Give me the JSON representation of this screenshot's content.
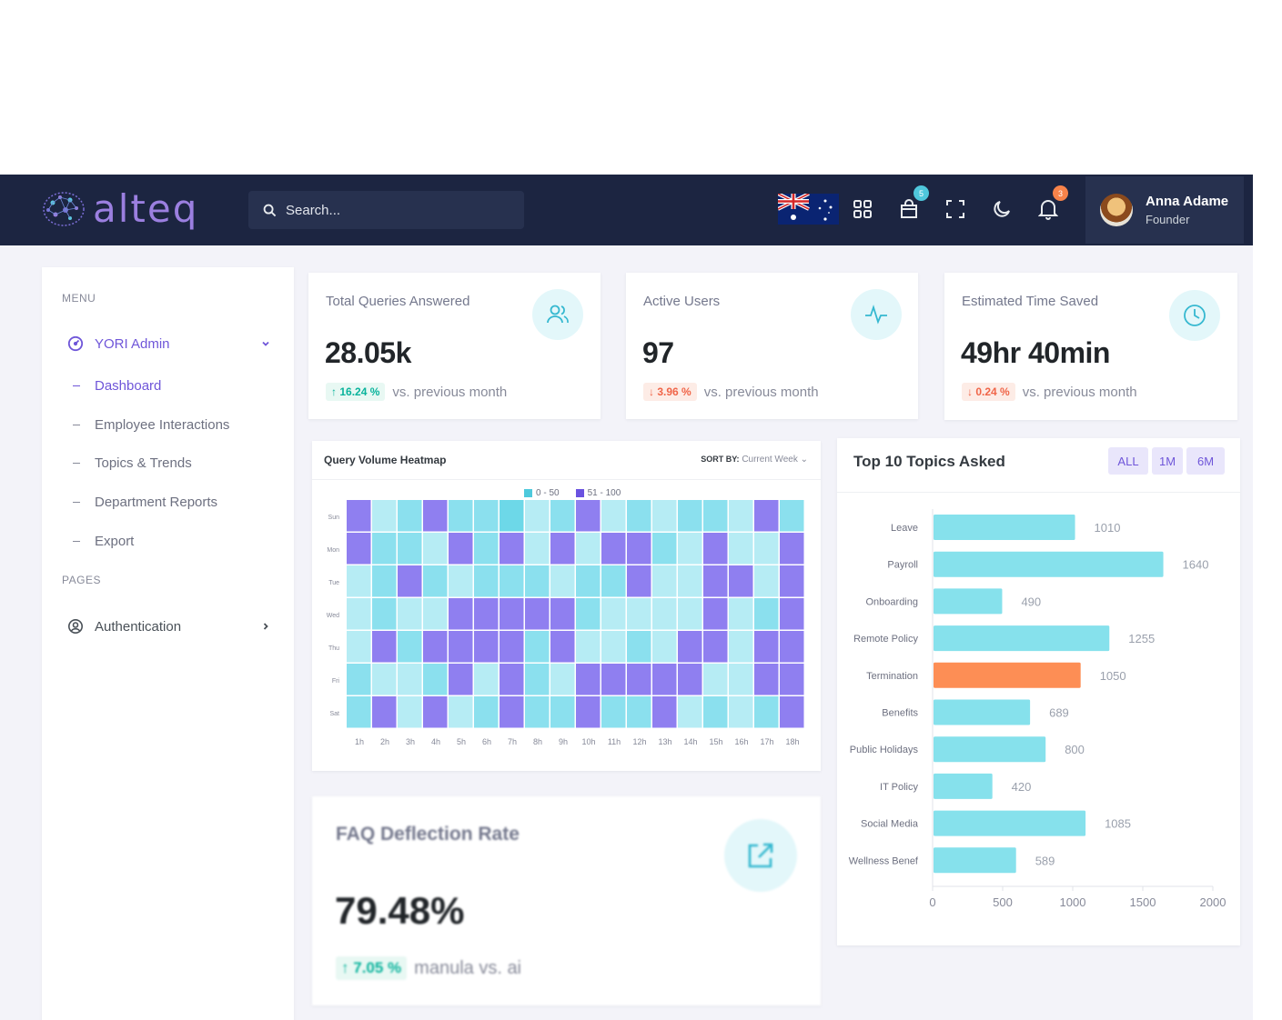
{
  "brand": {
    "name": "alteq"
  },
  "search": {
    "placeholder": "Search..."
  },
  "topbar": {
    "cart_badge": "5",
    "notif_badge": "3"
  },
  "user": {
    "name": "Anna Adame",
    "role": "Founder"
  },
  "sidebar": {
    "menu_title": "MENU",
    "group": "YORI Admin",
    "items": [
      "Dashboard",
      "Employee Interactions",
      "Topics & Trends",
      "Department Reports",
      "Export"
    ],
    "pages_title": "PAGES",
    "auth": "Authentication"
  },
  "kpis": [
    {
      "title": "Total Queries Answered",
      "value": "28.05k",
      "change": "16.24 %",
      "direction": "up",
      "note": "vs. previous month",
      "icon": "users-icon"
    },
    {
      "title": "Active Users",
      "value": "97",
      "change": "3.96 %",
      "direction": "down",
      "note": "vs. previous month",
      "icon": "activity-icon"
    },
    {
      "title": "Estimated Time Saved",
      "value": "49hr 40min",
      "change": "0.24 %",
      "direction": "down",
      "note": "vs. previous month",
      "icon": "clock-icon"
    }
  ],
  "heatmap": {
    "title": "Query Volume Heatmap",
    "sort_label": "SORT BY:",
    "sort_value": "Current Week",
    "legend": [
      "0 - 50",
      "51 - 100"
    ],
    "days": [
      "Sun",
      "Mon",
      "Tue",
      "Wed",
      "Thu",
      "Fri",
      "Sat"
    ],
    "hours": [
      "1h",
      "2h",
      "3h",
      "4h",
      "5h",
      "6h",
      "7h",
      "8h",
      "9h",
      "10h",
      "11h",
      "12h",
      "13h",
      "14h",
      "15h",
      "16h",
      "17h",
      "18h"
    ],
    "levels": [
      [
        4,
        1,
        2,
        4,
        2,
        2,
        3,
        1,
        2,
        4,
        1,
        2,
        1,
        2,
        2,
        1,
        4,
        2
      ],
      [
        4,
        2,
        2,
        1,
        4,
        2,
        4,
        1,
        4,
        1,
        4,
        4,
        2,
        1,
        4,
        1,
        1,
        4
      ],
      [
        1,
        2,
        4,
        2,
        1,
        2,
        2,
        2,
        1,
        2,
        2,
        4,
        1,
        1,
        4,
        4,
        1,
        4
      ],
      [
        1,
        2,
        1,
        1,
        4,
        4,
        4,
        4,
        4,
        2,
        1,
        1,
        1,
        1,
        4,
        1,
        2,
        4
      ],
      [
        1,
        4,
        2,
        4,
        4,
        4,
        4,
        2,
        4,
        1,
        1,
        2,
        1,
        4,
        4,
        1,
        4,
        4
      ],
      [
        2,
        1,
        1,
        2,
        4,
        1,
        4,
        2,
        1,
        4,
        4,
        4,
        4,
        4,
        1,
        1,
        4,
        4
      ],
      [
        2,
        4,
        1,
        4,
        1,
        2,
        4,
        2,
        2,
        4,
        2,
        2,
        4,
        1,
        2,
        1,
        2,
        4
      ]
    ],
    "colors": {
      "low_light": "#b6ecf4",
      "low_mid": "#8be0ee",
      "low_strong": "#6dd8e8",
      "high": "#8f7ff0"
    }
  },
  "faq": {
    "title": "FAQ Deflection Rate",
    "value": "79.48%",
    "change": "7.05 %",
    "note": "manula vs. ai",
    "icon": "external-link-icon"
  },
  "top_topics": {
    "title": "Top 10 Topics Asked",
    "buttons": [
      "ALL",
      "1M",
      "6M"
    ]
  },
  "chart_data": {
    "type": "bar",
    "orientation": "horizontal",
    "categories": [
      "Leave",
      "Payroll",
      "Onboarding",
      "Remote Policy",
      "Termination",
      "Benefits",
      "Public Holidays",
      "IT Policy",
      "Social Media",
      "Wellness Benef"
    ],
    "values": [
      1010,
      1640,
      490,
      1255,
      1050,
      689,
      800,
      420,
      1085,
      589
    ],
    "highlight_index": 4,
    "colors": {
      "bar": "#86e1ec",
      "highlight": "#fd8e55"
    },
    "xlim": [
      0,
      2000
    ],
    "xticks": [
      0,
      500,
      1000,
      1500,
      2000
    ],
    "title": "",
    "xlabel": "",
    "ylabel": ""
  }
}
